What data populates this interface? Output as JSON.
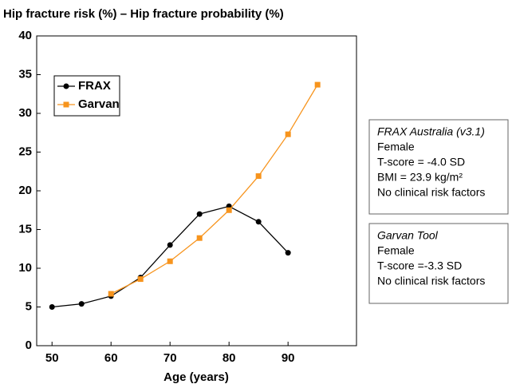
{
  "chart_data": {
    "type": "line",
    "title": "Hip fracture risk (%) – Hip fracture probability (%)",
    "xlabel": "Age (years)",
    "x": [
      50,
      55,
      60,
      65,
      70,
      75,
      80,
      85,
      90,
      95
    ],
    "series": [
      {
        "name": "FRAX",
        "color": "#000000",
        "marker": "circle",
        "values": [
          5.0,
          5.4,
          6.4,
          8.8,
          13,
          17,
          18,
          16,
          12,
          null
        ]
      },
      {
        "name": "Garvan",
        "color": "#f7941d",
        "marker": "square",
        "values": [
          null,
          null,
          6.7,
          8.6,
          10.9,
          13.9,
          17.5,
          21.9,
          27.3,
          33.7
        ]
      }
    ],
    "xlim": [
      47.4,
      101.6
    ],
    "xticks": [
      50,
      60,
      70,
      80,
      90
    ],
    "ylim": [
      0,
      40
    ],
    "yticks": [
      0,
      5,
      10,
      15,
      20,
      25,
      30,
      35,
      40
    ],
    "legend": "upper left",
    "annotations": [
      [
        "FRAX Australia (v3.1)",
        "Female",
        "T-score = -4.0 SD",
        "BMI = 23.9 kg/m²",
        "No clinical risk factors"
      ],
      [
        "Garvan Tool",
        "Female",
        "T-score =-3.3 SD",
        "No clinical risk factors"
      ]
    ]
  }
}
